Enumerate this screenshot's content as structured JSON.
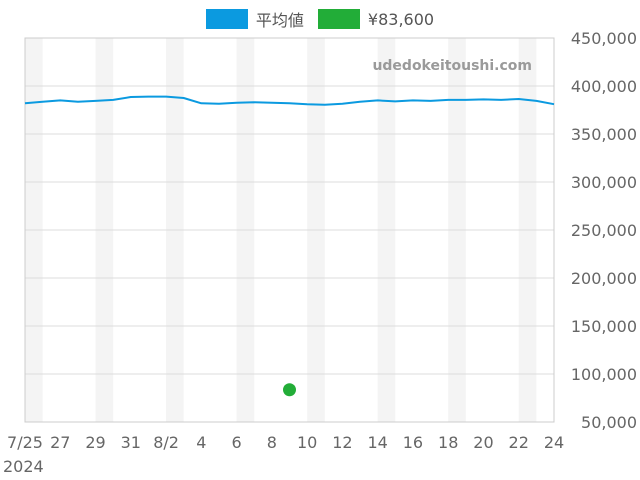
{
  "legend": {
    "items": [
      {
        "label": "平均値",
        "color": "#0b9ae0"
      },
      {
        "label": "¥83,600",
        "color": "#22ad38"
      }
    ]
  },
  "watermark": "udedokeitoushi.com",
  "year_label": "2024",
  "chart_data": {
    "type": "line",
    "x": [
      "7/25",
      "7/26",
      "7/27",
      "7/28",
      "7/29",
      "7/30",
      "7/31",
      "8/1",
      "8/2",
      "8/3",
      "8/4",
      "8/5",
      "8/6",
      "8/7",
      "8/8",
      "8/9",
      "8/10",
      "8/11",
      "8/12",
      "8/13",
      "8/14",
      "8/15",
      "8/16",
      "8/17",
      "8/18",
      "8/19",
      "8/20",
      "8/21",
      "8/22",
      "8/23",
      "8/24"
    ],
    "x_tick_labels": [
      "7/25",
      "27",
      "29",
      "31",
      "8/2",
      "4",
      "6",
      "8",
      "10",
      "12",
      "14",
      "16",
      "18",
      "20",
      "22",
      "24"
    ],
    "ylim": [
      50000,
      450000
    ],
    "y_ticks": [
      450000,
      400000,
      350000,
      300000,
      250000,
      200000,
      150000,
      100000,
      50000
    ],
    "y_tick_labels": [
      "450,000",
      "400,000",
      "350,000",
      "300,000",
      "250,000",
      "200,000",
      "150,000",
      "100,000",
      "50,000"
    ],
    "grid": true,
    "legend_position": "top-center",
    "y_axis_side": "right",
    "series": [
      {
        "name": "平均値",
        "color": "#0b9ae0",
        "values": [
          382000,
          383500,
          385000,
          383500,
          384500,
          385500,
          388500,
          389000,
          389000,
          387500,
          382000,
          381500,
          382500,
          383000,
          382500,
          382000,
          381000,
          380500,
          381500,
          383500,
          385000,
          384000,
          385000,
          384500,
          385500,
          385500,
          386000,
          385500,
          386500,
          384500,
          381000
        ]
      }
    ],
    "points": [
      {
        "name": "¥83,600",
        "color": "#22ad38",
        "x": "8/9",
        "y": 83600
      }
    ]
  }
}
